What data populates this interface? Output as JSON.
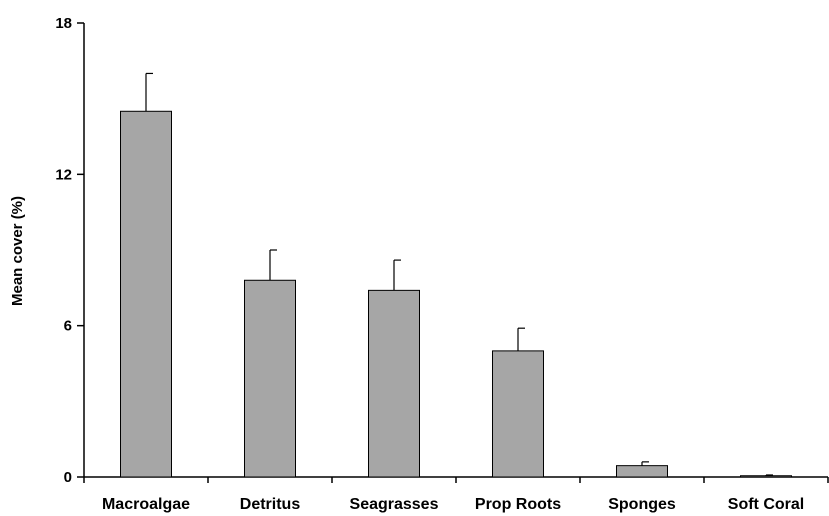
{
  "chart_data": {
    "type": "bar",
    "title": "",
    "xlabel": "",
    "ylabel": "Mean cover (%)",
    "ylim": [
      0,
      18
    ],
    "yticks": [
      0,
      6,
      12,
      18
    ],
    "grid": false,
    "legend": "none",
    "bar_color": "#a6a6a6",
    "categories": [
      "Macroalgae",
      "Detritus",
      "Seagrasses",
      "Prop Roots",
      "Sponges",
      "Soft Coral"
    ],
    "values": [
      14.5,
      7.8,
      7.4,
      5.0,
      0.45,
      0.05
    ],
    "error_upper": [
      1.5,
      1.2,
      1.2,
      0.9,
      0.15,
      0.03
    ]
  }
}
